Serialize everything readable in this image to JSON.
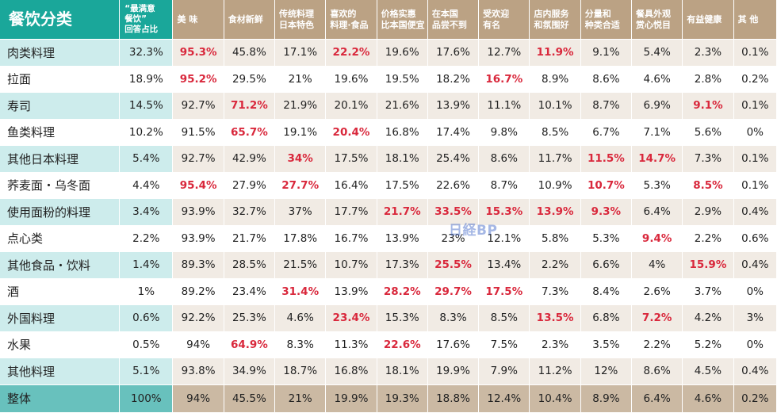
{
  "chart_data": {
    "type": "table",
    "corner_label": "餐饮分类",
    "columns": [
      "“最满意\n餐饮”\n回答占比",
      "美  味",
      "食材新鲜",
      "传统料理\n日本特色",
      "喜欢的\n料理·食品",
      "价格实惠\n比本国便宜",
      "在本国\n品尝不到",
      "受欢迎\n有名",
      "店内服务\n和氛围好",
      "分量和\n种类合适",
      "餐具外观\n赏心悦目",
      "有益健康",
      "其  他"
    ],
    "rows": [
      {
        "label": "肉类料理",
        "values": [
          "32.3%",
          "95.3%",
          "45.8%",
          "17.1%",
          "22.2%",
          "19.6%",
          "17.6%",
          "12.7%",
          "11.9%",
          "9.1%",
          "5.4%",
          "2.3%",
          "0.1%"
        ],
        "highlight": [
          1,
          4,
          8
        ]
      },
      {
        "label": "拉面",
        "values": [
          "18.9%",
          "95.2%",
          "29.5%",
          "21%",
          "19.6%",
          "19.5%",
          "18.2%",
          "16.7%",
          "8.9%",
          "8.6%",
          "4.6%",
          "2.8%",
          "0.2%"
        ],
        "highlight": [
          1,
          7
        ]
      },
      {
        "label": "寿司",
        "values": [
          "14.5%",
          "92.7%",
          "71.2%",
          "21.9%",
          "20.1%",
          "21.6%",
          "13.9%",
          "11.1%",
          "10.1%",
          "8.7%",
          "6.9%",
          "9.1%",
          "0.1%"
        ],
        "highlight": [
          2,
          11
        ]
      },
      {
        "label": "鱼类料理",
        "values": [
          "10.2%",
          "91.5%",
          "65.7%",
          "19.1%",
          "20.4%",
          "16.8%",
          "17.4%",
          "9.8%",
          "8.5%",
          "6.7%",
          "7.1%",
          "5.6%",
          "0%"
        ],
        "highlight": [
          2,
          4
        ]
      },
      {
        "label": "其他日本料理",
        "values": [
          "5.4%",
          "92.7%",
          "42.9%",
          "34%",
          "17.5%",
          "18.1%",
          "25.4%",
          "8.6%",
          "11.7%",
          "11.5%",
          "14.7%",
          "7.3%",
          "0.1%"
        ],
        "highlight": [
          3,
          9,
          10
        ]
      },
      {
        "label": "荞麦面・乌冬面",
        "values": [
          "4.4%",
          "95.4%",
          "27.9%",
          "27.7%",
          "16.4%",
          "17.5%",
          "22.6%",
          "8.7%",
          "10.9%",
          "10.7%",
          "5.3%",
          "8.5%",
          "0.1%"
        ],
        "highlight": [
          1,
          3,
          9,
          11
        ]
      },
      {
        "label": "使用面粉的料理",
        "values": [
          "3.4%",
          "93.9%",
          "32.7%",
          "37%",
          "17.7%",
          "21.7%",
          "33.5%",
          "15.3%",
          "13.9%",
          "9.3%",
          "6.4%",
          "2.9%",
          "0.4%"
        ],
        "highlight": [
          5,
          6,
          7,
          8,
          9
        ]
      },
      {
        "label": "点心类",
        "values": [
          "2.2%",
          "93.9%",
          "21.7%",
          "17.8%",
          "16.7%",
          "13.9%",
          "23%",
          "12.1%",
          "5.8%",
          "5.3%",
          "9.4%",
          "2.2%",
          "0.6%"
        ],
        "highlight": [
          10
        ]
      },
      {
        "label": "其他食品・饮料",
        "values": [
          "1.4%",
          "89.3%",
          "28.5%",
          "21.5%",
          "10.7%",
          "17.3%",
          "25.5%",
          "13.4%",
          "2.2%",
          "6.6%",
          "4%",
          "15.9%",
          "0.4%"
        ],
        "highlight": [
          6,
          11
        ]
      },
      {
        "label": "酒",
        "values": [
          "1%",
          "89.2%",
          "23.4%",
          "31.4%",
          "13.9%",
          "28.2%",
          "29.7%",
          "17.5%",
          "7.3%",
          "8.4%",
          "2.6%",
          "3.7%",
          "0%"
        ],
        "highlight": [
          3,
          5,
          6,
          7
        ]
      },
      {
        "label": "外国料理",
        "values": [
          "0.6%",
          "92.2%",
          "25.3%",
          "4.6%",
          "23.4%",
          "15.3%",
          "8.3%",
          "8.5%",
          "13.5%",
          "6.8%",
          "7.2%",
          "4.2%",
          "3%"
        ],
        "highlight": [
          4,
          8,
          10
        ]
      },
      {
        "label": "水果",
        "values": [
          "0.5%",
          "94%",
          "64.9%",
          "8.3%",
          "11.3%",
          "22.6%",
          "17.6%",
          "7.5%",
          "2.3%",
          "3.5%",
          "2.2%",
          "5.2%",
          "0%"
        ],
        "highlight": [
          2,
          5
        ]
      },
      {
        "label": "其他料理",
        "values": [
          "5.1%",
          "93.8%",
          "34.9%",
          "18.7%",
          "16.8%",
          "18.1%",
          "19.9%",
          "7.9%",
          "11.2%",
          "12%",
          "8.6%",
          "4.5%",
          "0.4%"
        ],
        "highlight": []
      }
    ],
    "total": {
      "label": "整体",
      "values": [
        "100%",
        "94%",
        "45.5%",
        "21%",
        "19.9%",
        "19.3%",
        "18.8%",
        "12.4%",
        "10.4%",
        "8.9%",
        "6.4%",
        "4.6%",
        "0.2%"
      ]
    },
    "watermark": "日経BP"
  },
  "colors": {
    "teal_header": "#1aa79a",
    "tan_header": "#bba284",
    "teal_row": "#cdecec",
    "beige_row": "#f1ebe4",
    "total_teal": "#68c1bd",
    "total_tan": "#cbb9a3",
    "highlight": "#d9283c"
  }
}
